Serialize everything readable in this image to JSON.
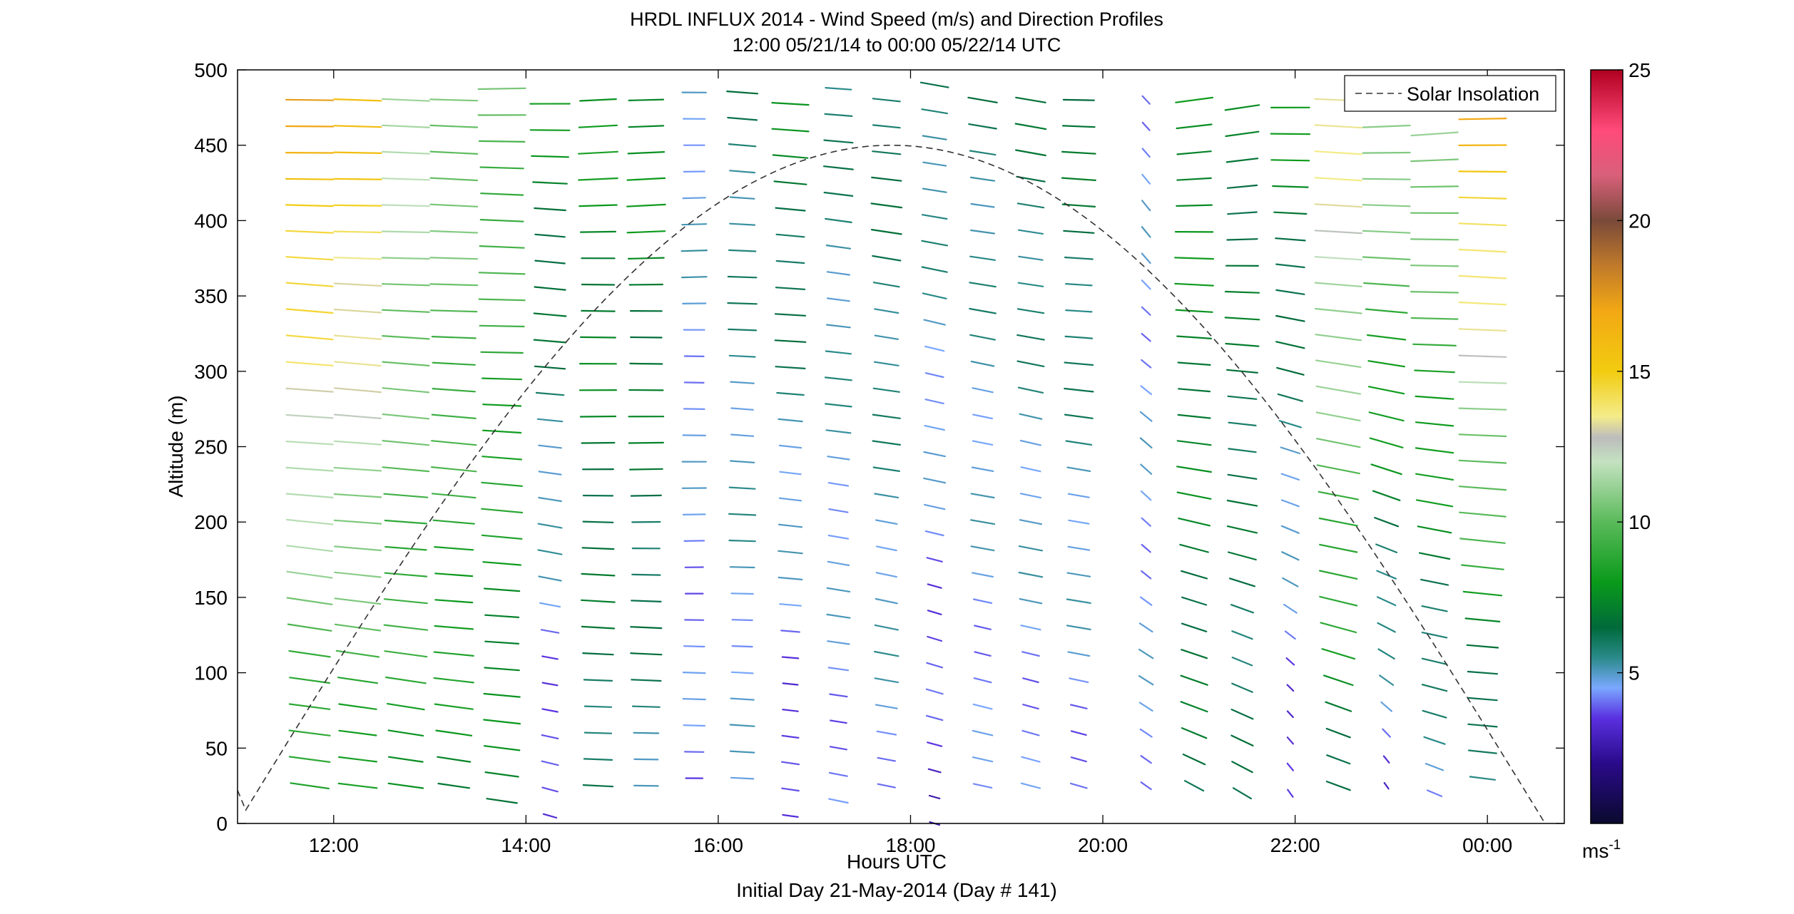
{
  "chart_data": {
    "type": "wind-barb",
    "title": "HRDL INFLUX 2014 - Wind Speed (m/s) and Direction Profiles",
    "subtitle": "12:00 05/21/14 to 00:00 05/22/14  UTC",
    "xlabel": "Hours UTC",
    "caption": "Initial Day 21-May-2014 (Day # 141)",
    "ylabel": "Altitude (m)",
    "xlim_hours": [
      11.0,
      24.8
    ],
    "ylim": [
      0,
      500
    ],
    "x_ticks": [
      {
        "hour": 12,
        "label": "12:00"
      },
      {
        "hour": 14,
        "label": "14:00"
      },
      {
        "hour": 16,
        "label": "16:00"
      },
      {
        "hour": 18,
        "label": "18:00"
      },
      {
        "hour": 20,
        "label": "20:00"
      },
      {
        "hour": 22,
        "label": "22:00"
      },
      {
        "hour": 24,
        "label": "00:00"
      }
    ],
    "y_ticks": [
      0,
      50,
      100,
      150,
      200,
      250,
      300,
      350,
      400,
      450,
      500
    ],
    "y_tick_labels": [
      "0",
      "50",
      "100",
      "150",
      "200",
      "250",
      "300",
      "350",
      "400",
      "450",
      "500"
    ],
    "grid": false,
    "legend": {
      "position": "top-right",
      "entries": [
        {
          "name": "Solar Insolation",
          "style": "dashed",
          "color": "#000000"
        }
      ]
    },
    "solar_insolation": {
      "start_hour": 11.0,
      "end_hour": 24.6,
      "peak_hour": 17.8,
      "peak_altitude": 450
    },
    "colorbar": {
      "min": 0,
      "max": 25,
      "ticks": [
        5,
        10,
        15,
        20,
        25
      ],
      "tick_labels": [
        "5",
        "10",
        "15",
        "20",
        "25"
      ],
      "unit_label": "ms",
      "unit_exponent": "-1",
      "stops": [
        {
          "v": 0,
          "c": "#0a0a2e"
        },
        {
          "v": 2,
          "c": "#2a0a8a"
        },
        {
          "v": 3.5,
          "c": "#5a30e0"
        },
        {
          "v": 4.5,
          "c": "#7aa8ff"
        },
        {
          "v": 5.5,
          "c": "#2a8a8a"
        },
        {
          "v": 6.5,
          "c": "#006a3a"
        },
        {
          "v": 8,
          "c": "#0a9a1a"
        },
        {
          "v": 10,
          "c": "#5aba5a"
        },
        {
          "v": 12,
          "c": "#c4e2c0"
        },
        {
          "v": 12.8,
          "c": "#bcbcbc"
        },
        {
          "v": 13.5,
          "c": "#f4ec8a"
        },
        {
          "v": 15,
          "c": "#f2cc10"
        },
        {
          "v": 17,
          "c": "#f2a814"
        },
        {
          "v": 18.5,
          "c": "#c07a2a"
        },
        {
          "v": 20,
          "c": "#7a4a3a"
        },
        {
          "v": 21.5,
          "c": "#d8607a"
        },
        {
          "v": 23,
          "c": "#ff4a7a"
        },
        {
          "v": 25,
          "c": "#b00020"
        }
      ]
    },
    "profiles": [
      {
        "hour": 11.75,
        "alt_min": 25,
        "speed_low": 8.0,
        "speed_high": 17.0,
        "dir_low": 250,
        "dir_high": 268
      },
      {
        "hour": 12.25,
        "alt_min": 25,
        "speed_low": 8.0,
        "speed_high": 16.0,
        "dir_low": 252,
        "dir_high": 268
      },
      {
        "hour": 12.75,
        "alt_min": 25,
        "speed_low": 8.0,
        "speed_high": 12.0,
        "dir_low": 252,
        "dir_high": 268
      },
      {
        "hour": 13.25,
        "alt_min": 25,
        "speed_low": 7.5,
        "speed_high": 11.0,
        "dir_low": 254,
        "dir_high": 268
      },
      {
        "hour": 13.75,
        "alt_min": 15,
        "speed_low": 7.0,
        "speed_high": 10.0,
        "dir_low": 255,
        "dir_high": 270
      },
      {
        "hour": 14.25,
        "alt_min": 5,
        "speed_low": 3.0,
        "speed_high": 8.0,
        "dir_low": 240,
        "dir_high": 268
      },
      {
        "hour": 14.75,
        "alt_min": 25,
        "speed_low": 6.0,
        "speed_high": 8.0,
        "dir_low": 262,
        "dir_high": 275
      },
      {
        "hour": 15.25,
        "alt_min": 25,
        "speed_low": 5.5,
        "speed_high": 8.0,
        "dir_low": 265,
        "dir_high": 275
      },
      {
        "hour": 15.75,
        "alt_min": 30,
        "speed_low": 4.0,
        "speed_high": 5.0,
        "dir_low": 268,
        "dir_high": 272
      },
      {
        "hour": 16.25,
        "alt_min": 30,
        "speed_low": 4.5,
        "speed_high": 6.0,
        "dir_low": 265,
        "dir_high": 262
      },
      {
        "hour": 16.75,
        "alt_min": 5,
        "speed_low": 3.0,
        "speed_high": 7.5,
        "dir_low": 255,
        "dir_high": 262
      },
      {
        "hour": 17.25,
        "alt_min": 15,
        "speed_low": 4.0,
        "speed_high": 6.0,
        "dir_low": 248,
        "dir_high": 258
      },
      {
        "hour": 17.75,
        "alt_min": 25,
        "speed_low": 4.5,
        "speed_high": 6.5,
        "dir_low": 245,
        "dir_high": 255
      },
      {
        "hour": 18.25,
        "alt_min": 0,
        "speed_low": 3.0,
        "speed_high": 6.0,
        "dir_low": 235,
        "dir_high": 250
      },
      {
        "hour": 18.75,
        "alt_min": 25,
        "speed_low": 4.0,
        "speed_high": 6.0,
        "dir_low": 242,
        "dir_high": 252
      },
      {
        "hour": 19.25,
        "alt_min": 25,
        "speed_low": 4.0,
        "speed_high": 6.5,
        "dir_low": 240,
        "dir_high": 252
      },
      {
        "hour": 19.75,
        "alt_min": 25,
        "speed_low": 4.0,
        "speed_high": 7.0,
        "dir_low": 240,
        "dir_high": 268
      },
      {
        "hour": 20.45,
        "alt_min": 25,
        "speed_low": 4.5,
        "speed_high": 4.5,
        "dir_low": 215,
        "dir_high": 200
      },
      {
        "hour": 20.95,
        "alt_min": 25,
        "speed_low": 6.5,
        "speed_high": 8.0,
        "dir_low": 220,
        "dir_high": 285
      },
      {
        "hour": 21.45,
        "alt_min": 20,
        "speed_low": 6.0,
        "speed_high": 7.0,
        "dir_low": 215,
        "dir_high": 290
      },
      {
        "hour": 21.95,
        "alt_min": 20,
        "speed_low": 3.0,
        "speed_high": 8.0,
        "dir_low": 195,
        "dir_high": 275
      },
      {
        "hour": 22.45,
        "alt_min": 25,
        "speed_low": 6.5,
        "speed_high": 14.0,
        "dir_low": 230,
        "dir_high": 268
      },
      {
        "hour": 22.95,
        "alt_min": 25,
        "speed_low": 3.5,
        "speed_high": 12.0,
        "dir_low": 200,
        "dir_high": 282
      },
      {
        "hour": 23.45,
        "alt_min": 20,
        "speed_low": 4.5,
        "speed_high": 12.0,
        "dir_low": 230,
        "dir_high": 282
      },
      {
        "hour": 23.95,
        "alt_min": 30,
        "speed_low": 5.0,
        "speed_high": 17.0,
        "dir_low": 255,
        "dir_high": 270
      }
    ]
  }
}
